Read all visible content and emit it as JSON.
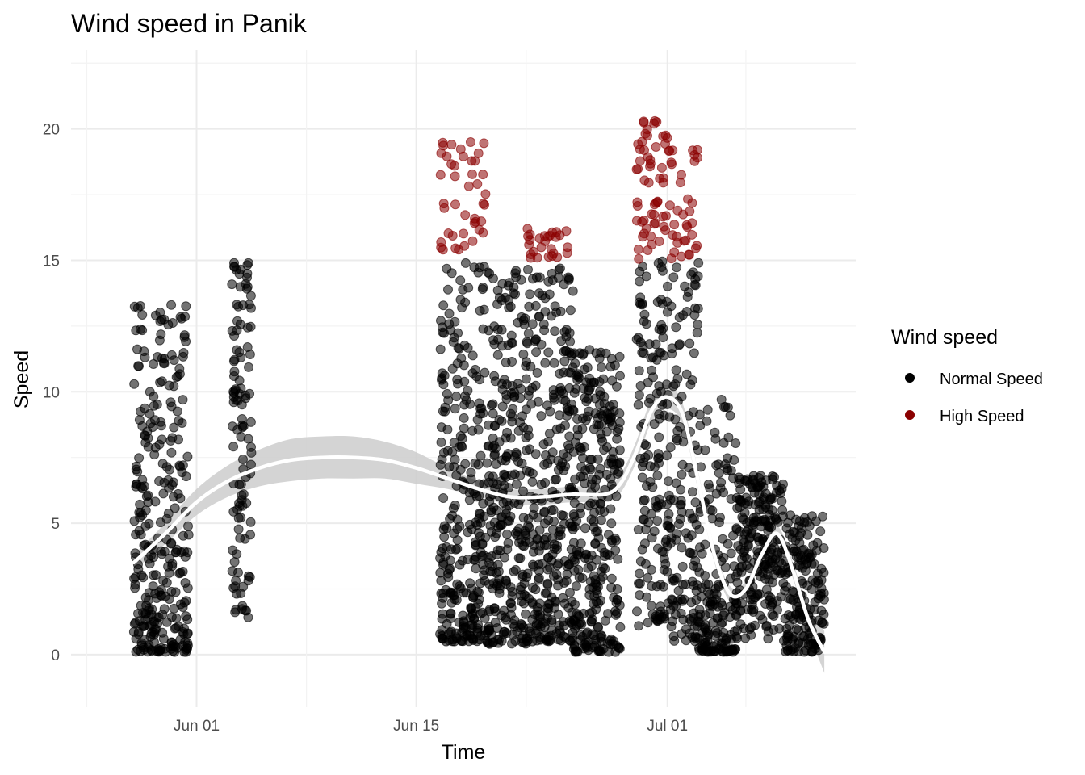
{
  "chart_data": {
    "type": "scatter",
    "title": "Wind speed in Panik",
    "xlabel": "Time",
    "ylabel": "Speed",
    "x_domain": [
      "2024-05-24",
      "2024-07-13"
    ],
    "ylim": [
      -2,
      23
    ],
    "grid": true,
    "x_ticks": [
      {
        "date": "2024-06-01",
        "label": "Jun 01"
      },
      {
        "date": "2024-06-15",
        "label": "Jun 15"
      },
      {
        "date": "2024-07-01",
        "label": "Jul 01"
      }
    ],
    "y_ticks": [
      0,
      5,
      10,
      15,
      20
    ],
    "threshold": 15,
    "legend": {
      "title": "Wind speed",
      "position": "right",
      "items": [
        {
          "label": "Normal Speed",
          "color": "#000000"
        },
        {
          "label": "High Speed",
          "color": "#8b0000"
        }
      ]
    },
    "colors": {
      "normal": "#000000",
      "high": "#8b0000",
      "smooth_line": "#ffffff",
      "smooth_band": "#cccccc"
    },
    "point_clusters": [
      {
        "start": "2024-05-28",
        "end": "2024-05-31T12:00",
        "min": 0.1,
        "max": 13.3,
        "mean": 4.3,
        "count": 300
      },
      {
        "start": "2024-06-03T06:00",
        "end": "2024-06-04T12:00",
        "min": 1.0,
        "max": 14.9,
        "mean": 8.0,
        "count": 110
      },
      {
        "start": "2024-06-16T12:00",
        "end": "2024-06-19T12:00",
        "min": 0.5,
        "max": 19.5,
        "mean": 6.3,
        "count": 320
      },
      {
        "start": "2024-06-19T12:00",
        "end": "2024-06-22",
        "min": 0.4,
        "max": 14.6,
        "mean": 5.2,
        "count": 260
      },
      {
        "start": "2024-06-22",
        "end": "2024-06-25",
        "min": 0.5,
        "max": 16.2,
        "mean": 6.0,
        "count": 330
      },
      {
        "start": "2024-06-25",
        "end": "2024-06-28",
        "min": 0.1,
        "max": 11.6,
        "mean": 4.4,
        "count": 300
      },
      {
        "start": "2024-06-29",
        "end": "2024-07-01",
        "min": 1.0,
        "max": 20.3,
        "mean": 10.8,
        "count": 200
      },
      {
        "start": "2024-07-01",
        "end": "2024-07-03",
        "min": 0.5,
        "max": 19.2,
        "mean": 7.8,
        "count": 180
      },
      {
        "start": "2024-07-03",
        "end": "2024-07-05T12:00",
        "min": 0.1,
        "max": 9.7,
        "mean": 2.4,
        "count": 180
      },
      {
        "start": "2024-07-05T12:00",
        "end": "2024-07-08T12:00",
        "min": 0.3,
        "max": 6.8,
        "mean": 4.2,
        "count": 220
      },
      {
        "start": "2024-07-08T12:00",
        "end": "2024-07-11",
        "min": 0.1,
        "max": 5.3,
        "mean": 2.0,
        "count": 170
      }
    ],
    "smooth": {
      "x": [
        "2024-05-28",
        "2024-05-30",
        "2024-06-01",
        "2024-06-03",
        "2024-06-05",
        "2024-06-07",
        "2024-06-09",
        "2024-06-11",
        "2024-06-13",
        "2024-06-15",
        "2024-06-17",
        "2024-06-19",
        "2024-06-21",
        "2024-06-23",
        "2024-06-25",
        "2024-06-27",
        "2024-06-28",
        "2024-06-29",
        "2024-06-30",
        "2024-07-01",
        "2024-07-02",
        "2024-07-03",
        "2024-07-04",
        "2024-07-05",
        "2024-07-06",
        "2024-07-07",
        "2024-07-08",
        "2024-07-09",
        "2024-07-10",
        "2024-07-11"
      ],
      "y": [
        3.5,
        4.6,
        5.8,
        6.6,
        7.1,
        7.4,
        7.5,
        7.5,
        7.4,
        7.1,
        6.7,
        6.3,
        6.0,
        6.0,
        6.1,
        6.1,
        6.5,
        7.7,
        9.3,
        9.8,
        9.1,
        6.5,
        3.8,
        2.3,
        2.5,
        3.8,
        4.6,
        3.2,
        1.3,
        0.1
      ],
      "se": [
        0.3,
        0.4,
        0.5,
        0.6,
        0.7,
        0.8,
        0.8,
        0.8,
        0.7,
        0.6,
        0.4,
        0.3,
        0.3,
        0.3,
        0.3,
        0.3,
        0.35,
        0.4,
        0.45,
        0.45,
        0.4,
        0.35,
        0.3,
        0.3,
        0.3,
        0.3,
        0.3,
        0.3,
        0.4,
        0.8
      ]
    }
  }
}
